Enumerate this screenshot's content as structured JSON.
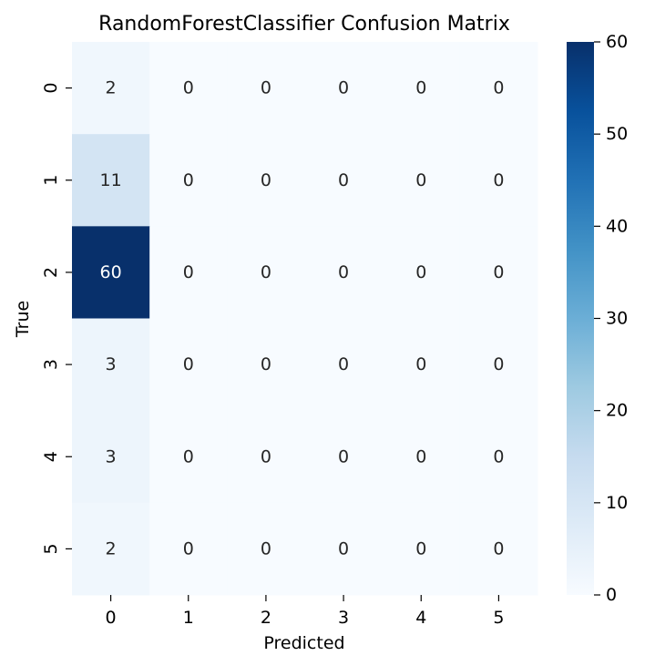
{
  "chart_data": {
    "type": "heatmap",
    "title": "RandomForestClassifier Confusion Matrix",
    "xlabel": "Predicted",
    "ylabel": "True",
    "x_categories": [
      "0",
      "1",
      "2",
      "3",
      "4",
      "5"
    ],
    "y_categories": [
      "0",
      "1",
      "2",
      "3",
      "4",
      "5"
    ],
    "values": [
      [
        2,
        0,
        0,
        0,
        0,
        0
      ],
      [
        11,
        0,
        0,
        0,
        0,
        0
      ],
      [
        60,
        0,
        0,
        0,
        0,
        0
      ],
      [
        3,
        0,
        0,
        0,
        0,
        0
      ],
      [
        3,
        0,
        0,
        0,
        0,
        0
      ],
      [
        2,
        0,
        0,
        0,
        0,
        0
      ]
    ],
    "colorbar": {
      "min": 0,
      "max": 60,
      "ticks": [
        0,
        10,
        20,
        30,
        40,
        50,
        60
      ],
      "colormap": "Blues"
    }
  }
}
